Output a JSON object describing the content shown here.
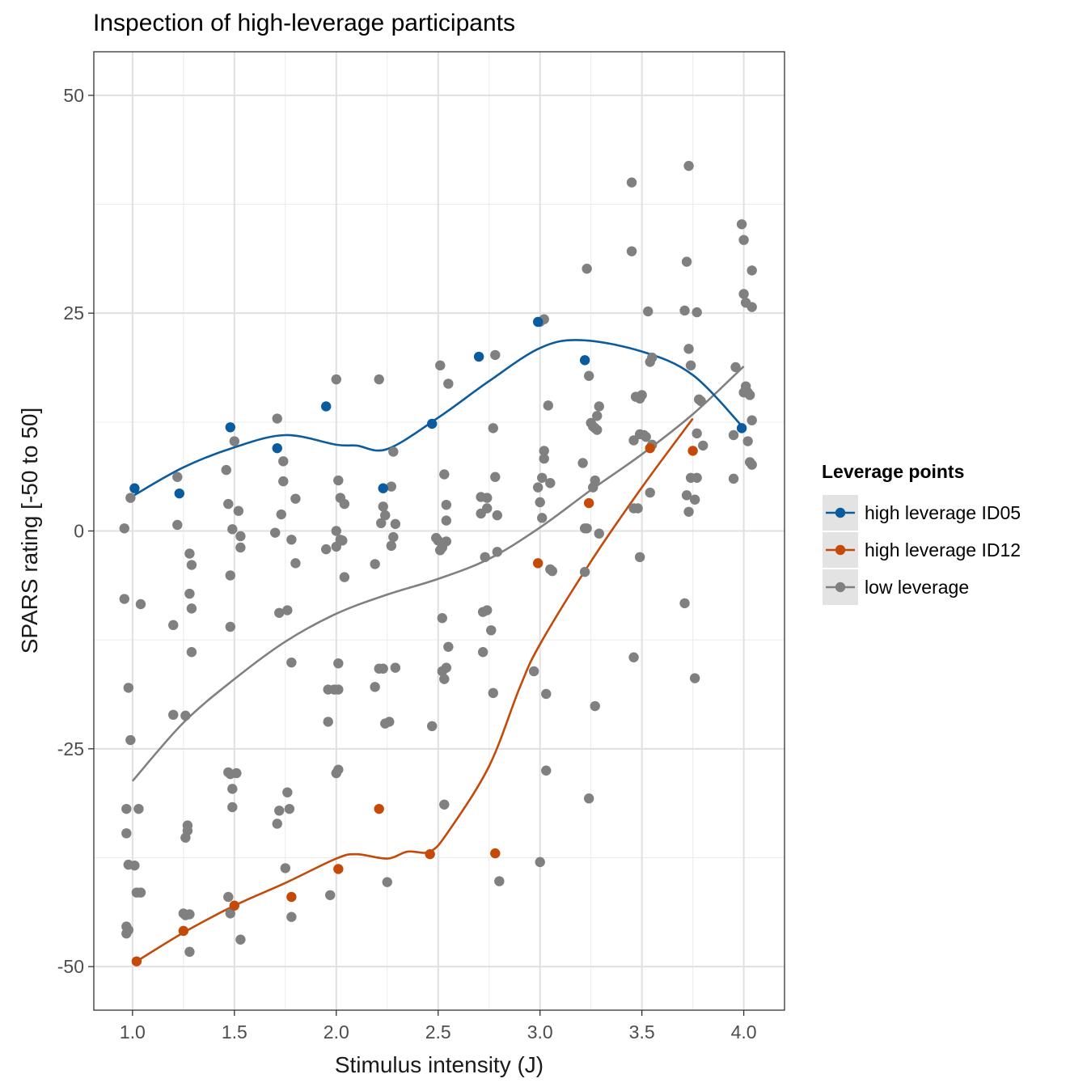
{
  "chart_data": {
    "type": "scatter",
    "title": "Inspection of high-leverage participants",
    "xlabel": "Stimulus intensity (J)",
    "ylabel": "SPARS rating [-50 to 50]",
    "xlim": [
      0.81,
      4.2
    ],
    "ylim": [
      -55,
      55
    ],
    "x_ticks": [
      1.0,
      1.5,
      2.0,
      2.5,
      3.0,
      3.5,
      4.0
    ],
    "x_tick_labels": [
      "1.0",
      "1.5",
      "2.0",
      "2.5",
      "3.0",
      "3.5",
      "4.0"
    ],
    "y_ticks": [
      -50,
      -25,
      0,
      25,
      50
    ],
    "y_tick_labels": [
      "-50",
      "-25",
      "0",
      "25",
      "50"
    ],
    "grid": true,
    "legend": {
      "title": "Leverage points",
      "position": "right",
      "entries": [
        "high leverage ID05",
        "high leverage ID12",
        "low leverage"
      ]
    },
    "series": [
      {
        "name": "low leverage",
        "color": "#808080",
        "points": [
          [
            0.96,
            -7.8
          ],
          [
            0.96,
            0.3
          ],
          [
            0.97,
            -34.7
          ],
          [
            0.97,
            -31.9
          ],
          [
            0.97,
            -45.4
          ],
          [
            0.97,
            -46.2
          ],
          [
            0.98,
            -45.8
          ],
          [
            0.98,
            -18.0
          ],
          [
            0.98,
            -38.3
          ],
          [
            0.99,
            -24.0
          ],
          [
            0.99,
            3.8
          ],
          [
            1.01,
            -38.4
          ],
          [
            1.02,
            -41.5
          ],
          [
            1.03,
            -31.9
          ],
          [
            1.04,
            -8.4
          ],
          [
            1.04,
            -41.5
          ],
          [
            1.2,
            -21.1
          ],
          [
            1.2,
            -10.8
          ],
          [
            1.22,
            6.2
          ],
          [
            1.22,
            0.7
          ],
          [
            1.25,
            -43.9
          ],
          [
            1.26,
            -35.2
          ],
          [
            1.26,
            -44.1
          ],
          [
            1.26,
            -21.2
          ],
          [
            1.27,
            -34.4
          ],
          [
            1.27,
            -33.8
          ],
          [
            1.28,
            -44.0
          ],
          [
            1.28,
            -2.6
          ],
          [
            1.28,
            -48.3
          ],
          [
            1.28,
            -7.2
          ],
          [
            1.29,
            -3.9
          ],
          [
            1.29,
            -8.9
          ],
          [
            1.29,
            -13.9
          ],
          [
            1.46,
            7.0
          ],
          [
            1.47,
            3.1
          ],
          [
            1.47,
            -42.0
          ],
          [
            1.47,
            -27.7
          ],
          [
            1.48,
            -5.1
          ],
          [
            1.48,
            -27.9
          ],
          [
            1.48,
            -11.0
          ],
          [
            1.48,
            -43.9
          ],
          [
            1.49,
            -29.6
          ],
          [
            1.49,
            -31.7
          ],
          [
            1.49,
            0.2
          ],
          [
            1.5,
            10.3
          ],
          [
            1.51,
            -27.8
          ],
          [
            1.52,
            2.3
          ],
          [
            1.53,
            -0.6
          ],
          [
            1.53,
            -1.9
          ],
          [
            1.53,
            -46.9
          ],
          [
            1.7,
            -0.2
          ],
          [
            1.71,
            12.9
          ],
          [
            1.71,
            -33.6
          ],
          [
            1.72,
            -9.4
          ],
          [
            1.72,
            -32.1
          ],
          [
            1.73,
            1.9
          ],
          [
            1.74,
            8.0
          ],
          [
            1.74,
            5.7
          ],
          [
            1.75,
            -38.7
          ],
          [
            1.76,
            -9.1
          ],
          [
            1.76,
            -30.0
          ],
          [
            1.77,
            -31.9
          ],
          [
            1.78,
            -1.0
          ],
          [
            1.78,
            -15.1
          ],
          [
            1.78,
            -44.3
          ],
          [
            1.8,
            3.7
          ],
          [
            1.8,
            -3.7
          ],
          [
            1.95,
            -2.1
          ],
          [
            1.96,
            -21.9
          ],
          [
            1.96,
            -18.2
          ],
          [
            1.97,
            -41.8
          ],
          [
            1.99,
            -18.2
          ],
          [
            2.0,
            17.4
          ],
          [
            2.0,
            -27.8
          ],
          [
            2.0,
            0.0
          ],
          [
            2.0,
            -1.8
          ],
          [
            2.01,
            5.8
          ],
          [
            2.01,
            -15.2
          ],
          [
            2.01,
            -18.2
          ],
          [
            2.01,
            -27.4
          ],
          [
            2.02,
            3.8
          ],
          [
            2.02,
            -1.0
          ],
          [
            2.03,
            -1.1
          ],
          [
            2.04,
            3.1
          ],
          [
            2.04,
            -5.3
          ],
          [
            2.19,
            -17.9
          ],
          [
            2.19,
            -3.8
          ],
          [
            2.21,
            17.4
          ],
          [
            2.21,
            -15.8
          ],
          [
            2.22,
            0.9
          ],
          [
            2.23,
            2.8
          ],
          [
            2.23,
            -15.8
          ],
          [
            2.24,
            1.8
          ],
          [
            2.24,
            -22.1
          ],
          [
            2.25,
            -40.3
          ],
          [
            2.26,
            -21.9
          ],
          [
            2.27,
            5.1
          ],
          [
            2.27,
            -1.7
          ],
          [
            2.28,
            9.1
          ],
          [
            2.28,
            -0.7
          ],
          [
            2.29,
            -15.7
          ],
          [
            2.29,
            0.8
          ],
          [
            2.47,
            -22.4
          ],
          [
            2.49,
            -0.8
          ],
          [
            2.5,
            -1.1
          ],
          [
            2.51,
            -2.2
          ],
          [
            2.51,
            -2.2
          ],
          [
            2.51,
            19.0
          ],
          [
            2.52,
            -10.0
          ],
          [
            2.52,
            -16.1
          ],
          [
            2.52,
            -1.9
          ],
          [
            2.53,
            6.5
          ],
          [
            2.53,
            -17.0
          ],
          [
            2.53,
            -31.4
          ],
          [
            2.54,
            -15.7
          ],
          [
            2.54,
            -1.2
          ],
          [
            2.54,
            1.2
          ],
          [
            2.54,
            3.0
          ],
          [
            2.55,
            16.9
          ],
          [
            2.55,
            -13.3
          ],
          [
            2.71,
            2.0
          ],
          [
            2.71,
            3.9
          ],
          [
            2.72,
            -9.3
          ],
          [
            2.72,
            -13.9
          ],
          [
            2.73,
            -3.0
          ],
          [
            2.74,
            3.8
          ],
          [
            2.74,
            -9.1
          ],
          [
            2.74,
            2.6
          ],
          [
            2.76,
            -11.4
          ],
          [
            2.77,
            -18.6
          ],
          [
            2.77,
            11.8
          ],
          [
            2.78,
            6.2
          ],
          [
            2.78,
            20.2
          ],
          [
            2.79,
            -2.4
          ],
          [
            2.79,
            1.8
          ],
          [
            2.8,
            -40.2
          ],
          [
            2.97,
            -16.1
          ],
          [
            2.99,
            5.0
          ],
          [
            3.0,
            24.0
          ],
          [
            3.0,
            3.3
          ],
          [
            3.0,
            -38.0
          ],
          [
            3.01,
            6.1
          ],
          [
            3.01,
            1.5
          ],
          [
            3.02,
            8.3
          ],
          [
            3.02,
            24.3
          ],
          [
            3.02,
            9.2
          ],
          [
            3.03,
            -27.5
          ],
          [
            3.03,
            -18.7
          ],
          [
            3.04,
            14.4
          ],
          [
            3.05,
            5.5
          ],
          [
            3.05,
            -4.4
          ],
          [
            3.06,
            -4.6
          ],
          [
            3.21,
            7.8
          ],
          [
            3.22,
            0.3
          ],
          [
            3.22,
            -4.7
          ],
          [
            3.23,
            30.1
          ],
          [
            3.23,
            0.3
          ],
          [
            3.24,
            -30.7
          ],
          [
            3.24,
            17.8
          ],
          [
            3.25,
            12.4
          ],
          [
            3.26,
            12.0
          ],
          [
            3.26,
            5.0
          ],
          [
            3.27,
            11.8
          ],
          [
            3.27,
            -20.1
          ],
          [
            3.27,
            5.8
          ],
          [
            3.28,
            13.2
          ],
          [
            3.28,
            11.6
          ],
          [
            3.29,
            14.3
          ],
          [
            3.29,
            -0.3
          ],
          [
            3.45,
            40.0
          ],
          [
            3.45,
            32.1
          ],
          [
            3.46,
            -14.5
          ],
          [
            3.46,
            10.4
          ],
          [
            3.46,
            2.6
          ],
          [
            3.47,
            15.4
          ],
          [
            3.48,
            2.6
          ],
          [
            3.49,
            -3.0
          ],
          [
            3.49,
            11.1
          ],
          [
            3.49,
            15.2
          ],
          [
            3.5,
            15.6
          ],
          [
            3.51,
            11.0
          ],
          [
            3.52,
            10.8
          ],
          [
            3.53,
            25.2
          ],
          [
            3.54,
            19.4
          ],
          [
            3.54,
            4.4
          ],
          [
            3.55,
            9.9
          ],
          [
            3.55,
            19.9
          ],
          [
            3.71,
            -8.3
          ],
          [
            3.71,
            25.3
          ],
          [
            3.72,
            30.9
          ],
          [
            3.72,
            4.1
          ],
          [
            3.73,
            2.2
          ],
          [
            3.73,
            41.9
          ],
          [
            3.73,
            20.9
          ],
          [
            3.74,
            6.1
          ],
          [
            3.74,
            19.0
          ],
          [
            3.76,
            -16.9
          ],
          [
            3.76,
            3.6
          ],
          [
            3.77,
            6.1
          ],
          [
            3.77,
            25.1
          ],
          [
            3.77,
            11.2
          ],
          [
            3.78,
            15.1
          ],
          [
            3.79,
            14.9
          ],
          [
            3.8,
            9.8
          ],
          [
            3.95,
            6.0
          ],
          [
            3.95,
            11.0
          ],
          [
            3.96,
            18.8
          ],
          [
            3.99,
            35.2
          ],
          [
            4.0,
            33.4
          ],
          [
            4.0,
            27.2
          ],
          [
            4.0,
            15.9
          ],
          [
            4.01,
            26.2
          ],
          [
            4.01,
            16.6
          ],
          [
            4.02,
            10.3
          ],
          [
            4.02,
            15.9
          ],
          [
            4.03,
            7.9
          ],
          [
            4.03,
            15.6
          ],
          [
            4.04,
            12.7
          ],
          [
            4.04,
            29.9
          ],
          [
            4.04,
            25.7
          ],
          [
            4.04,
            7.6
          ]
        ],
        "smooth": [
          [
            1.0,
            -28.7
          ],
          [
            1.25,
            -22.0
          ],
          [
            1.5,
            -17.0
          ],
          [
            1.75,
            -12.7
          ],
          [
            2.0,
            -9.5
          ],
          [
            2.25,
            -7.3
          ],
          [
            2.5,
            -5.5
          ],
          [
            2.75,
            -3.2
          ],
          [
            3.0,
            0.4
          ],
          [
            3.25,
            4.7
          ],
          [
            3.5,
            8.8
          ],
          [
            3.75,
            13.4
          ],
          [
            4.0,
            18.9
          ]
        ]
      },
      {
        "name": "high leverage ID05",
        "color": "#0b5c9e",
        "points": [
          [
            1.01,
            4.9
          ],
          [
            1.23,
            4.3
          ],
          [
            1.48,
            11.9
          ],
          [
            1.71,
            9.5
          ],
          [
            1.95,
            14.3
          ],
          [
            2.23,
            4.9
          ],
          [
            2.47,
            12.3
          ],
          [
            2.7,
            20.0
          ],
          [
            2.99,
            24.0
          ],
          [
            3.22,
            19.6
          ],
          [
            3.99,
            11.8
          ]
        ],
        "smooth": [
          [
            1.0,
            4.0
          ],
          [
            1.25,
            7.3
          ],
          [
            1.5,
            9.6
          ],
          [
            1.75,
            11.0
          ],
          [
            2.0,
            9.9
          ],
          [
            2.1,
            9.8
          ],
          [
            2.25,
            9.4
          ],
          [
            2.5,
            13.0
          ],
          [
            2.75,
            17.2
          ],
          [
            3.0,
            21.0
          ],
          [
            3.2,
            21.9
          ],
          [
            3.5,
            20.6
          ],
          [
            3.75,
            17.9
          ],
          [
            4.0,
            11.8
          ]
        ]
      },
      {
        "name": "high leverage ID12",
        "color": "#c44a0a",
        "points": [
          [
            1.02,
            -49.4
          ],
          [
            1.25,
            -45.9
          ],
          [
            1.5,
            -43.0
          ],
          [
            1.78,
            -42.0
          ],
          [
            2.01,
            -38.8
          ],
          [
            2.21,
            -31.9
          ],
          [
            2.46,
            -37.1
          ],
          [
            2.78,
            -37.0
          ],
          [
            2.99,
            -3.7
          ],
          [
            3.24,
            3.2
          ],
          [
            3.54,
            9.5
          ],
          [
            3.75,
            9.2
          ]
        ],
        "smooth": [
          [
            1.02,
            -49.4
          ],
          [
            1.25,
            -46.1
          ],
          [
            1.5,
            -43.0
          ],
          [
            1.75,
            -40.4
          ],
          [
            2.0,
            -37.6
          ],
          [
            2.1,
            -37.1
          ],
          [
            2.25,
            -37.6
          ],
          [
            2.35,
            -36.8
          ],
          [
            2.46,
            -36.8
          ],
          [
            2.55,
            -34.5
          ],
          [
            2.75,
            -27.0
          ],
          [
            2.9,
            -18.0
          ],
          [
            3.0,
            -13.0
          ],
          [
            3.25,
            -3.5
          ],
          [
            3.5,
            5.0
          ],
          [
            3.75,
            12.9
          ]
        ]
      }
    ]
  }
}
